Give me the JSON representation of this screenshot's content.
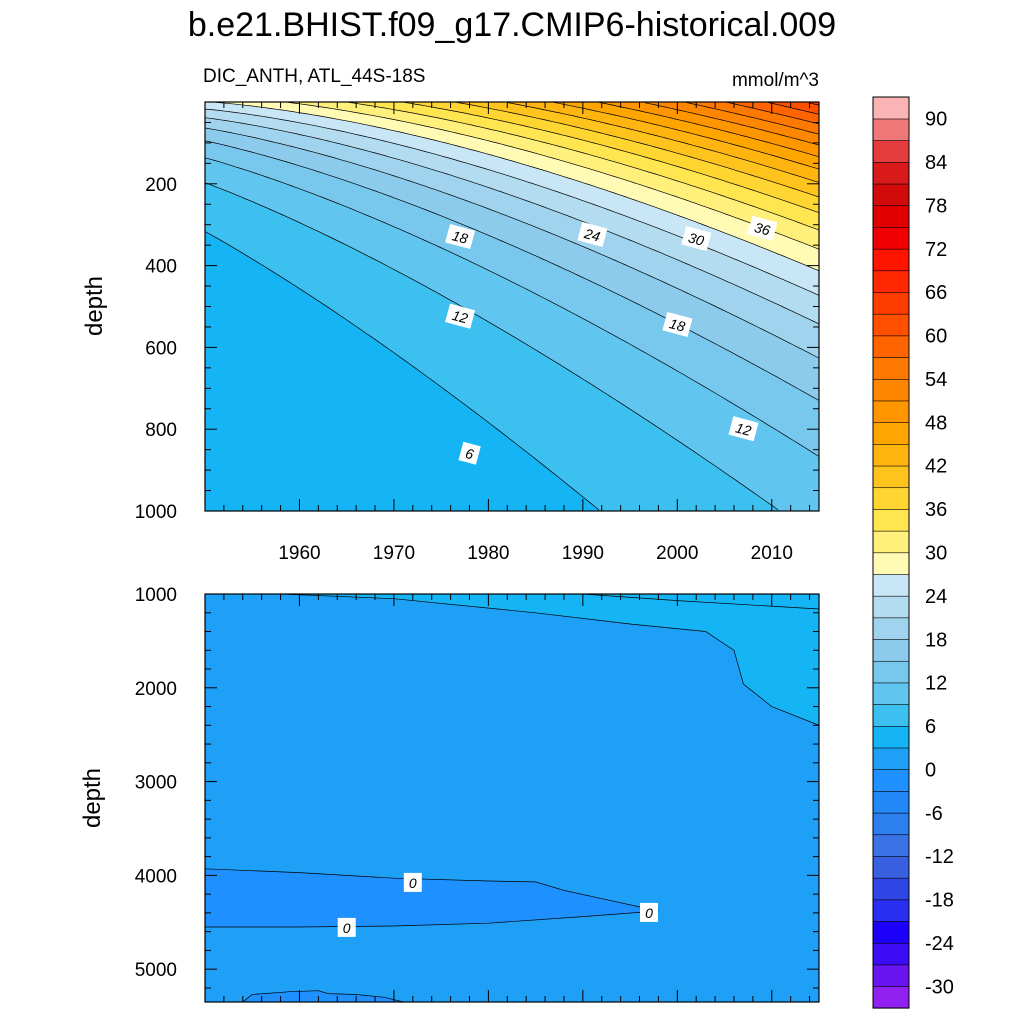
{
  "title": "b.e21.BHIST.f09_g17.CMIP6-historical.009",
  "subtitle_left": "DIC_ANTH, ATL_44S-18S",
  "subtitle_right": "mmol/m^3",
  "chart_data": [
    {
      "type": "contour",
      "panel": "upper",
      "title": "b.e21.BHIST.f09_g17.CMIP6-historical.009",
      "variable": "DIC_ANTH, ATL_44S-18S",
      "units": "mmol/m^3",
      "xlabel": "",
      "ylabel": "depth",
      "xlim": [
        1950,
        2015
      ],
      "ylim": [
        1000,
        0
      ],
      "x_ticks": [
        1960,
        1970,
        1980,
        1990,
        2000,
        2010
      ],
      "x_tick_labels": [
        "1960",
        "1970",
        "1980",
        "1990",
        "2000",
        "2010"
      ],
      "y_ticks": [
        200,
        400,
        600,
        800,
        1000
      ],
      "y_tick_labels": [
        "200",
        "400",
        "600",
        "800",
        "1000"
      ],
      "contour_interval": 3,
      "contour_labels": [
        {
          "text": "18",
          "x": 1977,
          "y": 330
        },
        {
          "text": "24",
          "x": 1991,
          "y": 325
        },
        {
          "text": "30",
          "x": 2002,
          "y": 335
        },
        {
          "text": "36",
          "x": 2009,
          "y": 310
        },
        {
          "text": "12",
          "x": 1977,
          "y": 525
        },
        {
          "text": "18",
          "x": 2000,
          "y": 545
        },
        {
          "text": "12",
          "x": 2007,
          "y": 800
        },
        {
          "text": "6",
          "x": 1978,
          "y": 860
        }
      ]
    },
    {
      "type": "contour",
      "panel": "lower",
      "xlabel": "",
      "ylabel": "depth",
      "xlim": [
        1950,
        2015
      ],
      "ylim": [
        5350,
        1000
      ],
      "x_ticks": [
        1960,
        1970,
        1980,
        1990,
        2000,
        2010
      ],
      "y_ticks": [
        1000,
        2000,
        3000,
        4000,
        5000
      ],
      "y_tick_labels": [
        "1000",
        "2000",
        "3000",
        "4000",
        "5000"
      ],
      "contour_labels": [
        {
          "text": "0",
          "x": 1972,
          "y": 4080
        },
        {
          "text": "0",
          "x": 1965,
          "y": 4560
        },
        {
          "text": "0",
          "x": 1997,
          "y": 4400
        }
      ]
    }
  ],
  "colorbar": {
    "levels": [
      -33,
      -30,
      -27,
      -24,
      -21,
      -18,
      -15,
      -12,
      -9,
      -6,
      -3,
      0,
      3,
      6,
      9,
      12,
      15,
      18,
      21,
      24,
      27,
      30,
      33,
      36,
      39,
      42,
      45,
      48,
      51,
      54,
      57,
      60,
      63,
      66,
      69,
      72,
      75,
      78,
      81,
      84,
      87,
      90,
      93
    ],
    "tick_labels": [
      "-30",
      "-24",
      "-18",
      "-12",
      "-6",
      "0",
      "6",
      "12",
      "18",
      "24",
      "30",
      "36",
      "42",
      "48",
      "54",
      "60",
      "66",
      "72",
      "78",
      "84",
      "90"
    ],
    "colors": [
      "#8f20ef",
      "#6a14f0",
      "#3c0cf5",
      "#1d00fa",
      "#2a2ef0",
      "#2f46e6",
      "#3a60e2",
      "#3b72e6",
      "#2d7ff0",
      "#2288f7",
      "#1e90ff",
      "#1ea0f7",
      "#14b4f5",
      "#3cc0f0",
      "#61c6ef",
      "#78c8ee",
      "#8ccbec",
      "#a0d4ee",
      "#b4dcf0",
      "#c8e6f5",
      "#fffab4",
      "#fff07c",
      "#ffe650",
      "#ffd532",
      "#ffc31e",
      "#ffb40f",
      "#ffa500",
      "#ff9600",
      "#ff8700",
      "#ff7800",
      "#ff6400",
      "#ff5000",
      "#ff3c00",
      "#ff2800",
      "#ff1400",
      "#f00000",
      "#e00000",
      "#d20a0a",
      "#d81a1a",
      "#e43c3c",
      "#f07878",
      "#fab4b4"
    ]
  }
}
